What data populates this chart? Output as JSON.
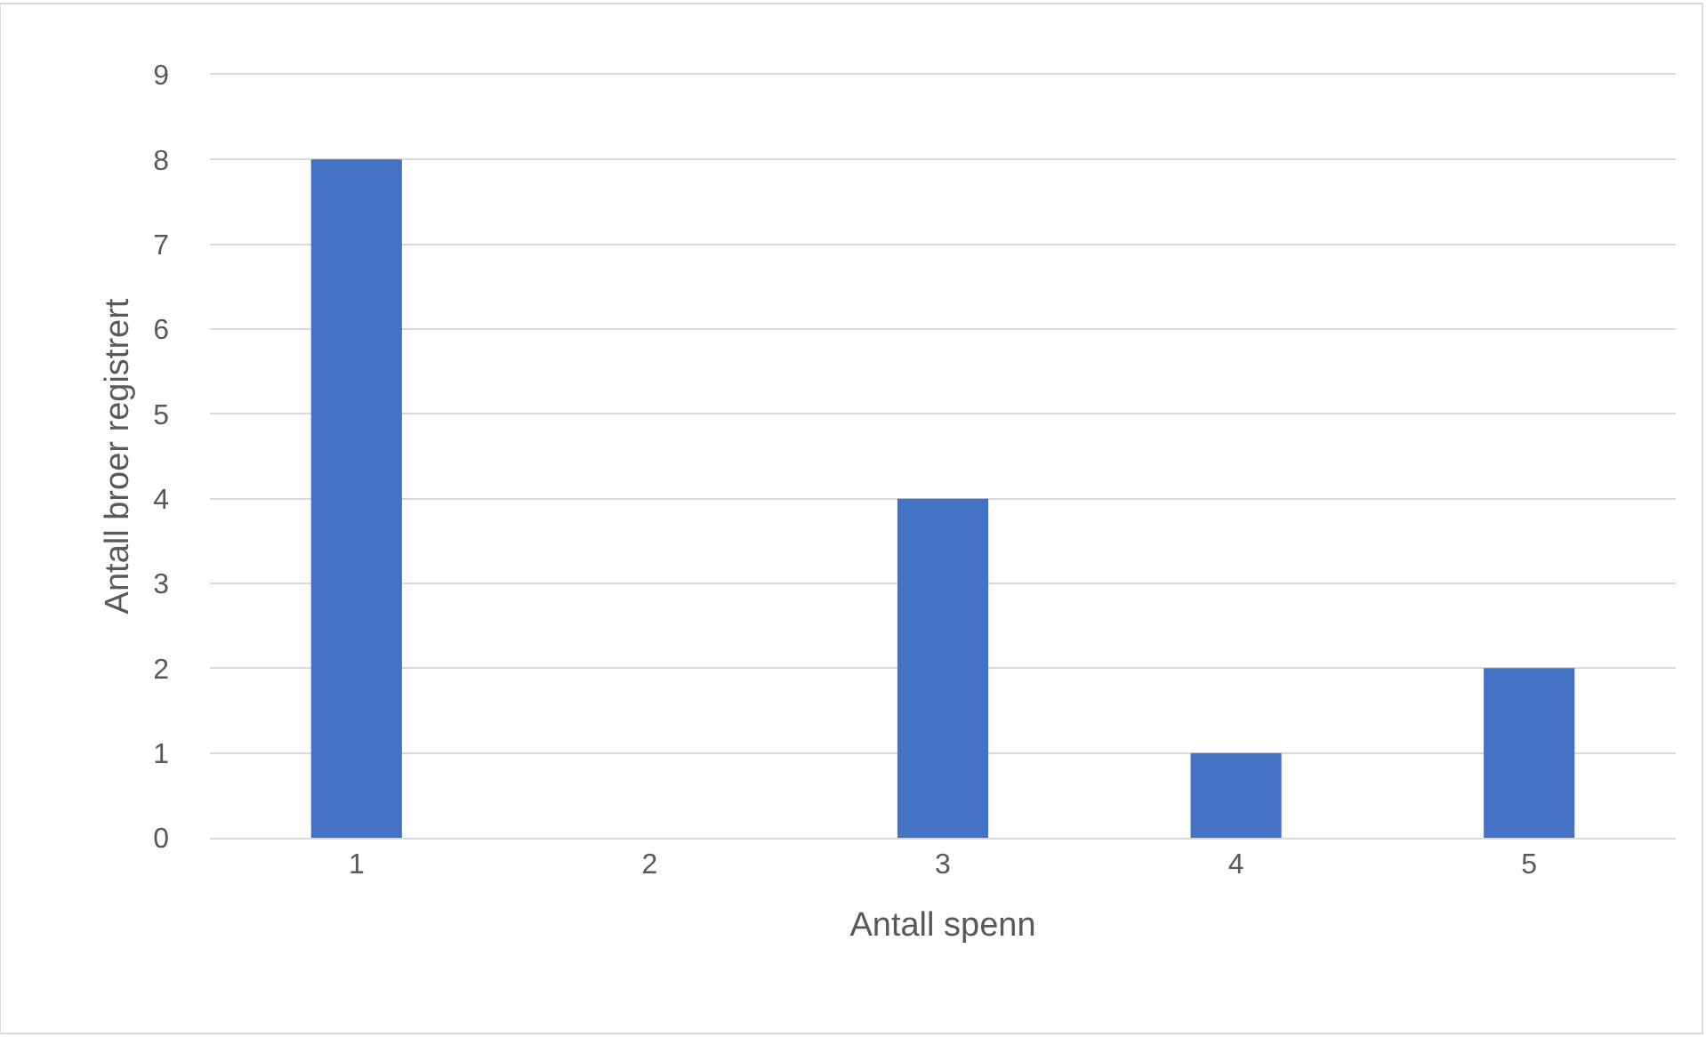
{
  "chart_data": {
    "type": "bar",
    "xlabel": "Antall spenn",
    "ylabel": "Antall broer registrert",
    "categories": [
      "1",
      "2",
      "3",
      "4",
      "5"
    ],
    "values": [
      8,
      0,
      4,
      1,
      2
    ],
    "color": "#4472c4",
    "ylim": [
      0,
      9
    ],
    "yticks": [
      0,
      1,
      2,
      3,
      4,
      5,
      6,
      7,
      8,
      9
    ],
    "grid": "y"
  }
}
